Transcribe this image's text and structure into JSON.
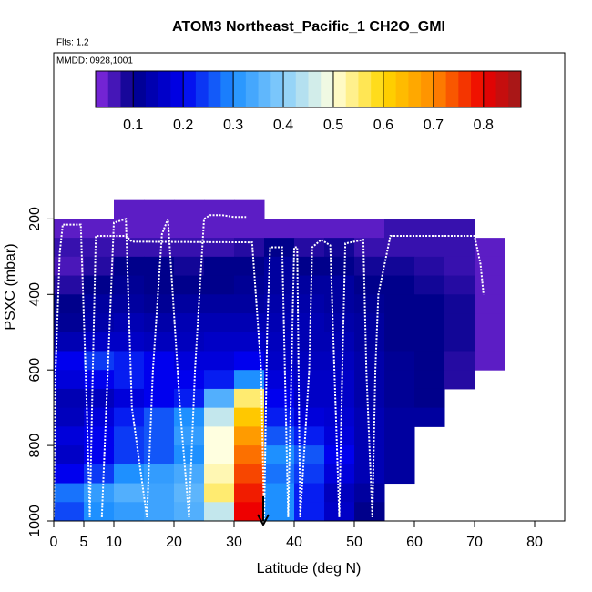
{
  "chart_data": {
    "type": "heatmap",
    "title": "ATOM3 Northeast_Pacific_1 CH2O_GMI",
    "annotations": [
      "Flts: 1,2",
      "MMDD: 0928,1001"
    ],
    "xlabel": "Latitude (deg N)",
    "ylabel": "PSXC (mbar)",
    "xlim": [
      0,
      85
    ],
    "xticks": [
      0,
      5,
      10,
      20,
      30,
      40,
      50,
      60,
      70,
      80
    ],
    "ylim": [
      1000,
      -240
    ],
    "yticks": [
      200,
      400,
      600,
      800,
      1000
    ],
    "x_edges": [
      0,
      5,
      10,
      15,
      20,
      25,
      30,
      35,
      40,
      45,
      50,
      55,
      60,
      65,
      70,
      75
    ],
    "y_edges": [
      150,
      200,
      250,
      300,
      350,
      400,
      450,
      500,
      550,
      600,
      650,
      700,
      750,
      800,
      850,
      900,
      950,
      1000
    ],
    "z": [
      [
        null,
        null,
        0.05,
        0.05,
        0.05,
        0.05,
        0.05,
        null,
        null,
        null,
        null,
        null,
        null,
        null,
        null
      ],
      [
        0.05,
        0.05,
        0.05,
        0.05,
        0.05,
        0.05,
        0.05,
        0.05,
        0.05,
        0.05,
        0.05,
        0.07,
        0.07,
        0.07,
        null
      ],
      [
        0.07,
        0.07,
        0.07,
        0.07,
        0.07,
        0.07,
        0.08,
        0.1,
        0.08,
        0.09,
        0.07,
        0.07,
        0.07,
        0.07,
        0.05
      ],
      [
        0.06,
        0.08,
        0.1,
        0.1,
        0.09,
        0.1,
        0.1,
        0.12,
        0.1,
        0.1,
        0.09,
        0.09,
        0.08,
        0.07,
        0.05
      ],
      [
        0.08,
        0.1,
        0.11,
        0.1,
        0.1,
        0.1,
        0.11,
        0.12,
        0.12,
        0.12,
        0.1,
        0.1,
        0.09,
        0.08,
        0.05
      ],
      [
        0.1,
        0.12,
        0.12,
        0.11,
        0.12,
        0.12,
        0.12,
        0.13,
        0.13,
        0.12,
        0.11,
        0.1,
        0.1,
        0.09,
        0.05
      ],
      [
        0.11,
        0.13,
        0.14,
        0.13,
        0.14,
        0.14,
        0.14,
        0.14,
        0.14,
        0.13,
        0.12,
        0.1,
        0.1,
        0.09,
        0.05
      ],
      [
        0.14,
        0.16,
        0.16,
        0.15,
        0.15,
        0.16,
        0.16,
        0.15,
        0.14,
        0.14,
        0.12,
        0.1,
        0.1,
        0.09,
        0.05
      ],
      [
        0.2,
        0.24,
        0.22,
        0.2,
        0.18,
        0.18,
        0.2,
        0.16,
        0.15,
        0.15,
        0.13,
        0.11,
        0.1,
        0.08,
        0.05
      ],
      [
        0.18,
        0.2,
        0.22,
        0.2,
        0.2,
        0.22,
        0.3,
        0.18,
        0.16,
        0.16,
        0.13,
        0.11,
        0.1,
        0.08,
        null
      ],
      [
        0.14,
        0.15,
        0.18,
        0.2,
        0.22,
        0.35,
        0.55,
        0.2,
        0.16,
        0.16,
        0.13,
        0.11,
        0.1,
        null,
        null
      ],
      [
        0.15,
        0.18,
        0.22,
        0.26,
        0.3,
        0.45,
        0.62,
        0.22,
        0.18,
        0.17,
        0.14,
        0.12,
        0.12,
        null,
        null
      ],
      [
        0.18,
        0.2,
        0.24,
        0.26,
        0.32,
        0.5,
        0.68,
        0.26,
        0.22,
        0.18,
        0.14,
        0.12,
        null,
        null,
        null
      ],
      [
        0.16,
        0.2,
        0.24,
        0.26,
        0.3,
        0.5,
        0.72,
        0.3,
        0.26,
        0.2,
        0.14,
        0.12,
        null,
        null,
        null
      ],
      [
        0.2,
        0.24,
        0.3,
        0.32,
        0.34,
        0.52,
        0.75,
        0.28,
        0.24,
        0.18,
        0.14,
        0.12,
        null,
        null,
        null
      ],
      [
        0.28,
        0.32,
        0.35,
        0.33,
        0.36,
        0.55,
        0.78,
        0.3,
        0.22,
        0.15,
        0.12,
        null,
        null,
        null,
        null
      ],
      [
        0.25,
        0.3,
        0.32,
        0.33,
        0.35,
        0.45,
        0.8,
        0.3,
        0.22,
        0.16,
        0.1,
        null,
        null,
        null,
        null
      ]
    ],
    "zlim": [
      0.025,
      0.875
    ],
    "zticks": [
      0.1,
      0.2,
      0.3,
      0.4,
      0.5,
      0.6,
      0.7,
      0.8
    ],
    "colorscale": [
      {
        "value": 0.025,
        "color": "#8a2be2"
      },
      {
        "value": 0.1,
        "color": "#00008b"
      },
      {
        "value": 0.2,
        "color": "#0000ee"
      },
      {
        "value": 0.3,
        "color": "#1e90ff"
      },
      {
        "value": 0.4,
        "color": "#87cefa"
      },
      {
        "value": 0.5,
        "color": "#ffffe0"
      },
      {
        "value": 0.6,
        "color": "#ffd700"
      },
      {
        "value": 0.7,
        "color": "#ff8c00"
      },
      {
        "value": 0.8,
        "color": "#ee0000"
      },
      {
        "value": 0.875,
        "color": "#9b1b1b"
      }
    ],
    "track": {
      "color": "#ffffff",
      "x": [
        0,
        0.3,
        1,
        1.5,
        4.5,
        5.5,
        6,
        6.5,
        7,
        12,
        13,
        33,
        34.5,
        35,
        35.5,
        36,
        38,
        39,
        40,
        40.5,
        41,
        42.5,
        43,
        44.5,
        46,
        47.5,
        48,
        48.5,
        51.5,
        52,
        53,
        53.5,
        54,
        56,
        70,
        71,
        71.5,
        null,
        8,
        10,
        12,
        13,
        15.5,
        16.5,
        18,
        19,
        21,
        22.5,
        23.5,
        25,
        26,
        28,
        30,
        32
      ],
      "y": [
        990,
        600,
        290,
        215,
        215,
        700,
        990,
        600,
        245,
        245,
        260,
        262,
        600,
        995,
        500,
        275,
        275,
        990,
        275,
        275,
        990,
        600,
        275,
        255,
        270,
        990,
        600,
        265,
        255,
        600,
        990,
        600,
        400,
        245,
        245,
        320,
        400,
        null,
        990,
        210,
        200,
        700,
        990,
        600,
        240,
        200,
        700,
        990,
        600,
        200,
        190,
        190,
        195,
        195
      ]
    }
  }
}
